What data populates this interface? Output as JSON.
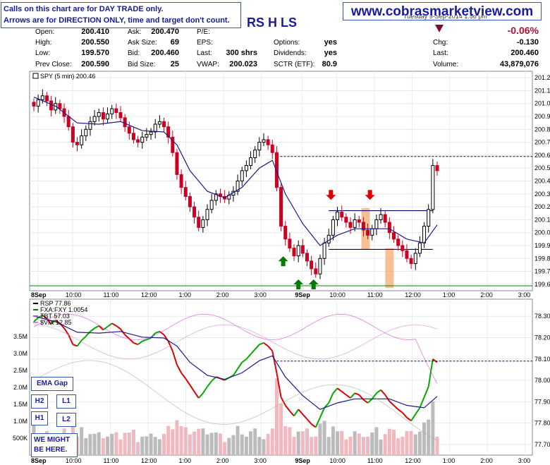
{
  "notice": {
    "line1": "Calls on this chart are for DAY TRADE only.",
    "line2": "Arrows are for DIRECTION ONLY, time and target don't count."
  },
  "website": "www.cobrasmarketview.com",
  "symbol_header": "RS H LS",
  "date_fragment": "Tuesday  9-Sep-2014  1:56 pm",
  "quote": {
    "open_label": "Open:",
    "open": "200.410",
    "high_label": "High:",
    "high": "200.550",
    "low_label": "Low:",
    "low": "199.570",
    "prev_label": "Prev Close:",
    "prev": "200.590",
    "ask_label": "Ask:",
    "ask": "200.470",
    "asksize_label": "Ask Size:",
    "asksize": "69",
    "bid_label": "Bid:",
    "bid": "200.460",
    "bidsize_label": "Bid Size:",
    "bidsize": "25",
    "pe_label": "P/E:",
    "pe": "",
    "eps_label": "EPS:",
    "eps": "",
    "last_label": "Last:",
    "last_shrs": "300 shrs",
    "vwap_label": "VWAP:",
    "vwap": "200.023",
    "options_label": "Options:",
    "options": "yes",
    "dividends_label": "Dividends:",
    "dividends": "yes",
    "sctr_label": "SCTR (ETF):",
    "sctr": "80.9",
    "pct_change": "-0.06%",
    "chg_label": "Chg:",
    "chg": "-0.130",
    "last2_label": "Last:",
    "last2": "200.460",
    "volume_label": "Volume:",
    "volume": "43,879,076"
  },
  "chart_data": [
    {
      "type": "candlestick",
      "legend": "SPY (5 min) 200.46",
      "x_ticks": [
        "8Sep",
        "10:00",
        "11:00",
        "12:00",
        "1:00",
        "2:00",
        "3:00",
        "9Sep",
        "10:00",
        "11:00",
        "12:00",
        "1:00",
        "2:00",
        "3:00"
      ],
      "y_ticks": [
        "201.20",
        "201.10",
        "201.00",
        "200.90",
        "200.80",
        "200.70",
        "200.60",
        "200.50",
        "200.40",
        "200.30",
        "200.20",
        "200.10",
        "200.00",
        "199.90",
        "199.80",
        "199.70",
        "199.60"
      ],
      "ylim": [
        199.55,
        201.25
      ],
      "close_path": [
        [
          0,
          200.98
        ],
        [
          1,
          201.03
        ],
        [
          2,
          201.06
        ],
        [
          3,
          201.02
        ],
        [
          4,
          200.95
        ],
        [
          5,
          201.0
        ],
        [
          6,
          200.96
        ],
        [
          7,
          200.9
        ],
        [
          8,
          200.82
        ],
        [
          9,
          200.7
        ],
        [
          10,
          200.68
        ],
        [
          11,
          200.75
        ],
        [
          12,
          200.8
        ],
        [
          13,
          200.86
        ],
        [
          14,
          200.9
        ],
        [
          15,
          200.93
        ],
        [
          16,
          200.88
        ],
        [
          17,
          200.92
        ],
        [
          18,
          200.96
        ],
        [
          19,
          200.93
        ],
        [
          20,
          200.89
        ],
        [
          21,
          200.82
        ],
        [
          22,
          200.77
        ],
        [
          23,
          200.72
        ],
        [
          24,
          200.7
        ],
        [
          25,
          200.74
        ],
        [
          26,
          200.76
        ],
        [
          27,
          200.78
        ],
        [
          28,
          200.84
        ],
        [
          29,
          200.86
        ],
        [
          30,
          200.82
        ],
        [
          31,
          200.74
        ],
        [
          32,
          200.62
        ],
        [
          33,
          200.45
        ],
        [
          34,
          200.35
        ],
        [
          35,
          200.28
        ],
        [
          36,
          200.2
        ],
        [
          37,
          200.12
        ],
        [
          38,
          200.04
        ],
        [
          39,
          200.1
        ],
        [
          40,
          200.18
        ],
        [
          41,
          200.25
        ],
        [
          42,
          200.3
        ],
        [
          43,
          200.28
        ],
        [
          44,
          200.26
        ],
        [
          45,
          200.29
        ],
        [
          46,
          200.32
        ],
        [
          47,
          200.4
        ],
        [
          48,
          200.48
        ],
        [
          49,
          200.52
        ],
        [
          50,
          200.58
        ],
        [
          51,
          200.64
        ],
        [
          52,
          200.7
        ],
        [
          53,
          200.72
        ],
        [
          54,
          200.68
        ],
        [
          55,
          200.62
        ],
        [
          56,
          200.35
        ],
        [
          57,
          200.05
        ],
        [
          58,
          199.95
        ],
        [
          59,
          199.88
        ],
        [
          60,
          199.82
        ],
        [
          61,
          199.9
        ],
        [
          62,
          199.84
        ],
        [
          63,
          199.78
        ],
        [
          64,
          199.72
        ],
        [
          65,
          199.68
        ],
        [
          66,
          199.8
        ],
        [
          67,
          199.92
        ],
        [
          68,
          199.98
        ],
        [
          69,
          200.1
        ],
        [
          70,
          200.16
        ],
        [
          71,
          200.12
        ],
        [
          72,
          200.08
        ],
        [
          73,
          200.04
        ],
        [
          74,
          200.1
        ],
        [
          75,
          200.08
        ],
        [
          76,
          200.02
        ],
        [
          77,
          199.98
        ],
        [
          78,
          200.03
        ],
        [
          79,
          200.1
        ],
        [
          80,
          200.14
        ],
        [
          81,
          200.08
        ],
        [
          82,
          200.0
        ],
        [
          83,
          199.95
        ],
        [
          84,
          199.9
        ],
        [
          85,
          199.86
        ],
        [
          86,
          199.8
        ],
        [
          87,
          199.76
        ],
        [
          88,
          199.84
        ],
        [
          89,
          199.92
        ],
        [
          90,
          200.05
        ],
        [
          91,
          200.18
        ],
        [
          92,
          200.52
        ],
        [
          93,
          200.48
        ]
      ],
      "ema_path": [
        [
          0,
          201.05
        ],
        [
          5,
          200.98
        ],
        [
          10,
          200.85
        ],
        [
          15,
          200.84
        ],
        [
          20,
          200.86
        ],
        [
          25,
          200.79
        ],
        [
          30,
          200.78
        ],
        [
          33,
          200.68
        ],
        [
          36,
          200.48
        ],
        [
          40,
          200.32
        ],
        [
          44,
          200.27
        ],
        [
          48,
          200.35
        ],
        [
          52,
          200.5
        ],
        [
          55,
          200.56
        ],
        [
          58,
          200.3
        ],
        [
          62,
          200.07
        ],
        [
          66,
          199.9
        ],
        [
          70,
          199.98
        ],
        [
          74,
          200.03
        ],
        [
          78,
          200.03
        ],
        [
          82,
          200.03
        ],
        [
          86,
          199.95
        ],
        [
          90,
          199.92
        ],
        [
          93,
          200.06
        ]
      ],
      "annotations": {
        "prev_close_line": 200.59,
        "resistance_line": 200.17,
        "support_line": 199.87,
        "green_arrow_ticks": [
          57.5,
          61,
          64.5
        ],
        "red_arrow_ticks": [
          68.5,
          77.5
        ],
        "orange_bar_ticks": [
          76.5,
          82
        ],
        "day_separator_tick": 56
      }
    },
    {
      "type": "line+bar",
      "legend": [
        "RSP 77.86",
        "FXA:FXY 1.0054",
        "TBT 57.03",
        "$VIX 12.85"
      ],
      "legend_colors": [
        "#000000",
        "#007700",
        "#cc44cc",
        "#cc88cc"
      ],
      "y_ticks_right": [
        "78.30",
        "78.20",
        "78.10",
        "78.00",
        "77.90",
        "77.80",
        "77.70"
      ],
      "y_ticks_left": [
        "3.5M",
        "3.0M",
        "2.5M",
        "2.0M",
        "1.5M",
        "1.0M",
        "500K"
      ],
      "x_ticks": [
        "8Sep",
        "10:00",
        "11:00",
        "12:00",
        "1:00",
        "2:00",
        "3:00",
        "9Sep",
        "10:00",
        "11:00",
        "12:00",
        "1:00",
        "2:00",
        "3:00"
      ],
      "ylim": [
        77.65,
        78.38
      ],
      "prev_close_line": 78.09
    }
  ],
  "panel_notes": {
    "ema_gap": "EMA Gap",
    "h2": "H2",
    "l1": "L1",
    "h1": "H1",
    "l2": "L2",
    "we_might": "WE MIGHT BE HERE."
  }
}
